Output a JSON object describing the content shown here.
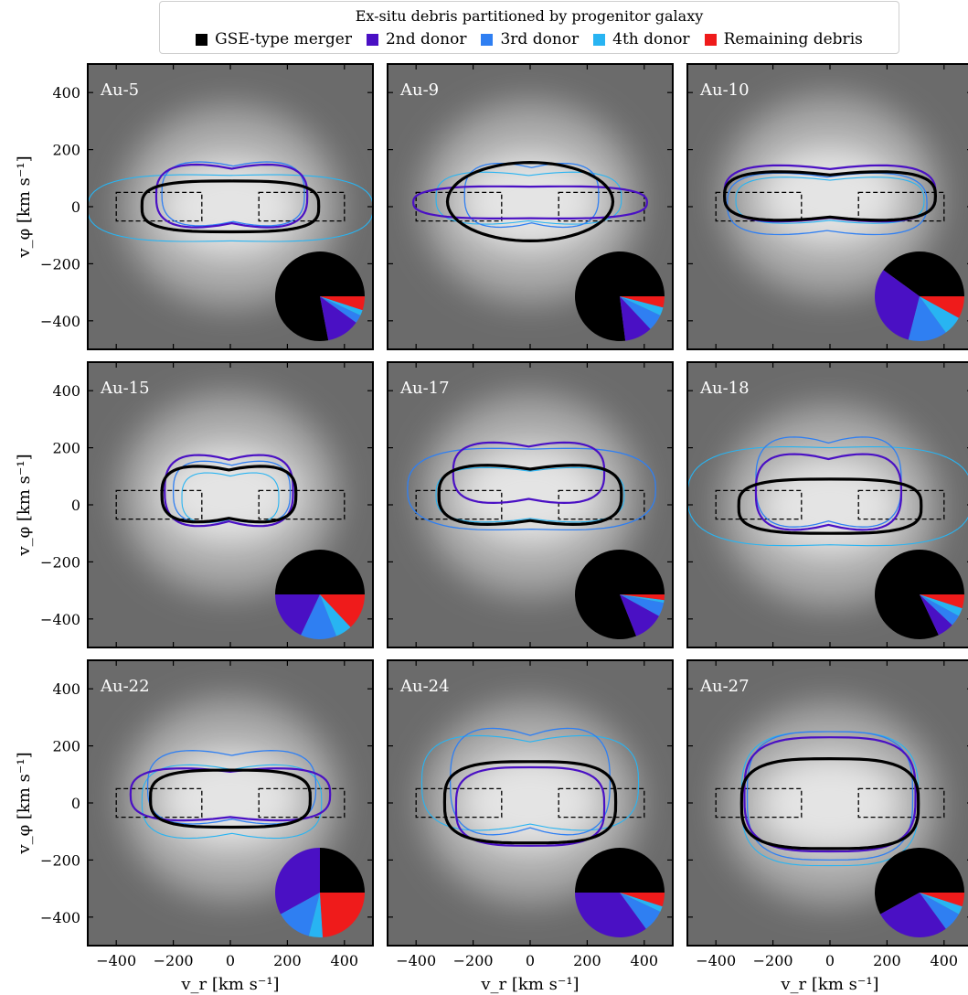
{
  "legend": {
    "title": "Ex-situ debris partitioned by progenitor galaxy",
    "entries": [
      {
        "label": "GSE-type merger",
        "color": "#000000"
      },
      {
        "label": "2nd donor",
        "color": "#4a10c4"
      },
      {
        "label": "3rd donor",
        "color": "#2f7ff2"
      },
      {
        "label": "4th donor",
        "color": "#28b4f2"
      },
      {
        "label": "Remaining debris",
        "color": "#ef1b1b"
      }
    ]
  },
  "axes": {
    "xlabel": "v_r [km s⁻¹]",
    "ylabel": "v_φ [km s⁻¹]",
    "xlim": [
      -500,
      500
    ],
    "ylim": [
      -500,
      500
    ],
    "xticks": [
      -400,
      -200,
      0,
      200,
      400
    ],
    "yticks": [
      -400,
      -200,
      0,
      200,
      400
    ],
    "selection_boxes": [
      {
        "x": [
          -400,
          -100
        ],
        "y": [
          -50,
          50
        ]
      },
      {
        "x": [
          100,
          400
        ],
        "y": [
          -50,
          50
        ]
      }
    ]
  },
  "chart_data": [
    {
      "type": "pie",
      "title": "Au-5",
      "values": [
        0.78,
        0.12,
        0.03,
        0.02,
        0.05
      ],
      "contours": [
        {
          "series": "GSE-type merger",
          "vr": [
            -310,
            310
          ],
          "vphi": [
            -88,
            90
          ],
          "shape": "box"
        },
        {
          "series": "2nd donor",
          "vr": [
            -260,
            270
          ],
          "vphi": [
            -95,
            170
          ],
          "shape": "peanut"
        },
        {
          "series": "3rd donor",
          "vr": [
            -240,
            260
          ],
          "vphi": [
            -90,
            180
          ],
          "shape": "peanut"
        },
        {
          "series": "4th donor",
          "vr": [
            -500,
            500
          ],
          "vphi": [
            -140,
            130
          ],
          "shape": "wide"
        }
      ]
    },
    {
      "type": "pie",
      "title": "Au-9",
      "values": [
        0.77,
        0.1,
        0.06,
        0.03,
        0.04
      ],
      "contours": [
        {
          "series": "GSE-type merger",
          "vr": [
            -290,
            290
          ],
          "vphi": [
            -120,
            155
          ],
          "shape": "ellipse"
        },
        {
          "series": "2nd donor",
          "vr": [
            -410,
            410
          ],
          "vphi": [
            -50,
            80
          ],
          "shape": "wide"
        },
        {
          "series": "3rd donor",
          "vr": [
            -230,
            240
          ],
          "vphi": [
            -95,
            175
          ],
          "shape": "peanut"
        },
        {
          "series": "4th donor",
          "vr": [
            -330,
            320
          ],
          "vphi": [
            -80,
            140
          ],
          "shape": "peanut"
        }
      ]
    },
    {
      "type": "pie",
      "title": "Au-10",
      "values": [
        0.4,
        0.31,
        0.14,
        0.07,
        0.08
      ],
      "contours": [
        {
          "series": "GSE-type merger",
          "vr": [
            -370,
            370
          ],
          "vphi": [
            -65,
            140
          ],
          "shape": "peanut"
        },
        {
          "series": "2nd donor",
          "vr": [
            -370,
            370
          ],
          "vphi": [
            -72,
            165
          ],
          "shape": "peanut"
        },
        {
          "series": "3rd donor",
          "vr": [
            -360,
            340
          ],
          "vphi": [
            -120,
            140
          ],
          "shape": "peanut"
        },
        {
          "series": "4th donor",
          "vr": [
            -330,
            330
          ],
          "vphi": [
            -75,
            120
          ],
          "shape": "peanut"
        }
      ]
    },
    {
      "type": "pie",
      "title": "Au-15",
      "values": [
        0.5,
        0.18,
        0.13,
        0.06,
        0.13
      ],
      "contours": [
        {
          "series": "GSE-type merger",
          "vr": [
            -240,
            230
          ],
          "vphi": [
            -80,
            155
          ],
          "shape": "peanut"
        },
        {
          "series": "2nd donor",
          "vr": [
            -230,
            220
          ],
          "vphi": [
            -100,
            200
          ],
          "shape": "peanut"
        },
        {
          "series": "3rd donor",
          "vr": [
            -200,
            210
          ],
          "vphi": [
            -85,
            175
          ],
          "shape": "peanut"
        },
        {
          "series": "4th donor",
          "vr": [
            -170,
            170
          ],
          "vphi": [
            -80,
            130
          ],
          "shape": "peanut"
        }
      ]
    },
    {
      "type": "pie",
      "title": "Au-17",
      "values": [
        0.81,
        0.11,
        0.05,
        0.01,
        0.02
      ],
      "contours": [
        {
          "series": "GSE-type merger",
          "vr": [
            -320,
            320
          ],
          "vphi": [
            -90,
            160
          ],
          "shape": "peanut"
        },
        {
          "series": "2nd donor",
          "vr": [
            -270,
            260
          ],
          "vphi": [
            -15,
            240
          ],
          "shape": "peanut"
        },
        {
          "series": "3rd donor",
          "vr": [
            -430,
            440
          ],
          "vphi": [
            -110,
            220
          ],
          "shape": "wide"
        },
        {
          "series": "4th donor",
          "vr": [
            -330,
            330
          ],
          "vphi": [
            -80,
            150
          ],
          "shape": "peanut"
        }
      ]
    },
    {
      "type": "pie",
      "title": "Au-18",
      "values": [
        0.82,
        0.06,
        0.04,
        0.03,
        0.05
      ],
      "contours": [
        {
          "series": "GSE-type merger",
          "vr": [
            -320,
            320
          ],
          "vphi": [
            -100,
            90
          ],
          "shape": "box"
        },
        {
          "series": "2nd donor",
          "vr": [
            -260,
            250
          ],
          "vphi": [
            -115,
            205
          ],
          "shape": "peanut"
        },
        {
          "series": "3rd donor",
          "vr": [
            -260,
            250
          ],
          "vphi": [
            -110,
            270
          ],
          "shape": "peanut"
        },
        {
          "series": "4th donor",
          "vr": [
            -500,
            500
          ],
          "vphi": [
            -170,
            230
          ],
          "shape": "wide"
        }
      ]
    },
    {
      "type": "pie",
      "title": "Au-22",
      "values": [
        0.25,
        0.33,
        0.13,
        0.05,
        0.24
      ],
      "contours": [
        {
          "series": "GSE-type merger",
          "vr": [
            -280,
            280
          ],
          "vphi": [
            -85,
            115
          ],
          "shape": "box"
        },
        {
          "series": "2nd donor",
          "vr": [
            -350,
            350
          ],
          "vphi": [
            -80,
            140
          ],
          "shape": "peanut"
        },
        {
          "series": "3rd donor",
          "vr": [
            -290,
            300
          ],
          "vphi": [
            -100,
            210
          ],
          "shape": "peanut"
        },
        {
          "series": "4th donor",
          "vr": [
            -310,
            320
          ],
          "vphi": [
            -150,
            160
          ],
          "shape": "peanut"
        }
      ]
    },
    {
      "type": "pie",
      "title": "Au-24",
      "values": [
        0.5,
        0.35,
        0.08,
        0.02,
        0.05
      ],
      "contours": [
        {
          "series": "GSE-type merger",
          "vr": [
            -300,
            300
          ],
          "vphi": [
            -140,
            145
          ],
          "shape": "box"
        },
        {
          "series": "2nd donor",
          "vr": [
            -260,
            260
          ],
          "vphi": [
            -150,
            125
          ],
          "shape": "box"
        },
        {
          "series": "3rd donor",
          "vr": [
            -280,
            280
          ],
          "vphi": [
            -150,
            300
          ],
          "shape": "peanut"
        },
        {
          "series": "4th donor",
          "vr": [
            -380,
            380
          ],
          "vphi": [
            -130,
            270
          ],
          "shape": "peanut"
        }
      ]
    },
    {
      "type": "pie",
      "title": "Au-27",
      "values": [
        0.58,
        0.27,
        0.07,
        0.03,
        0.05
      ],
      "contours": [
        {
          "series": "GSE-type merger",
          "vr": [
            -310,
            310
          ],
          "vphi": [
            -160,
            155
          ],
          "shape": "box"
        },
        {
          "series": "2nd donor",
          "vr": [
            -300,
            300
          ],
          "vphi": [
            -170,
            230
          ],
          "shape": "box"
        },
        {
          "series": "3rd donor",
          "vr": [
            -290,
            290
          ],
          "vphi": [
            -200,
            250
          ],
          "shape": "box"
        },
        {
          "series": "4th donor",
          "vr": [
            -310,
            310
          ],
          "vphi": [
            -220,
            250
          ],
          "shape": "box"
        }
      ]
    }
  ]
}
